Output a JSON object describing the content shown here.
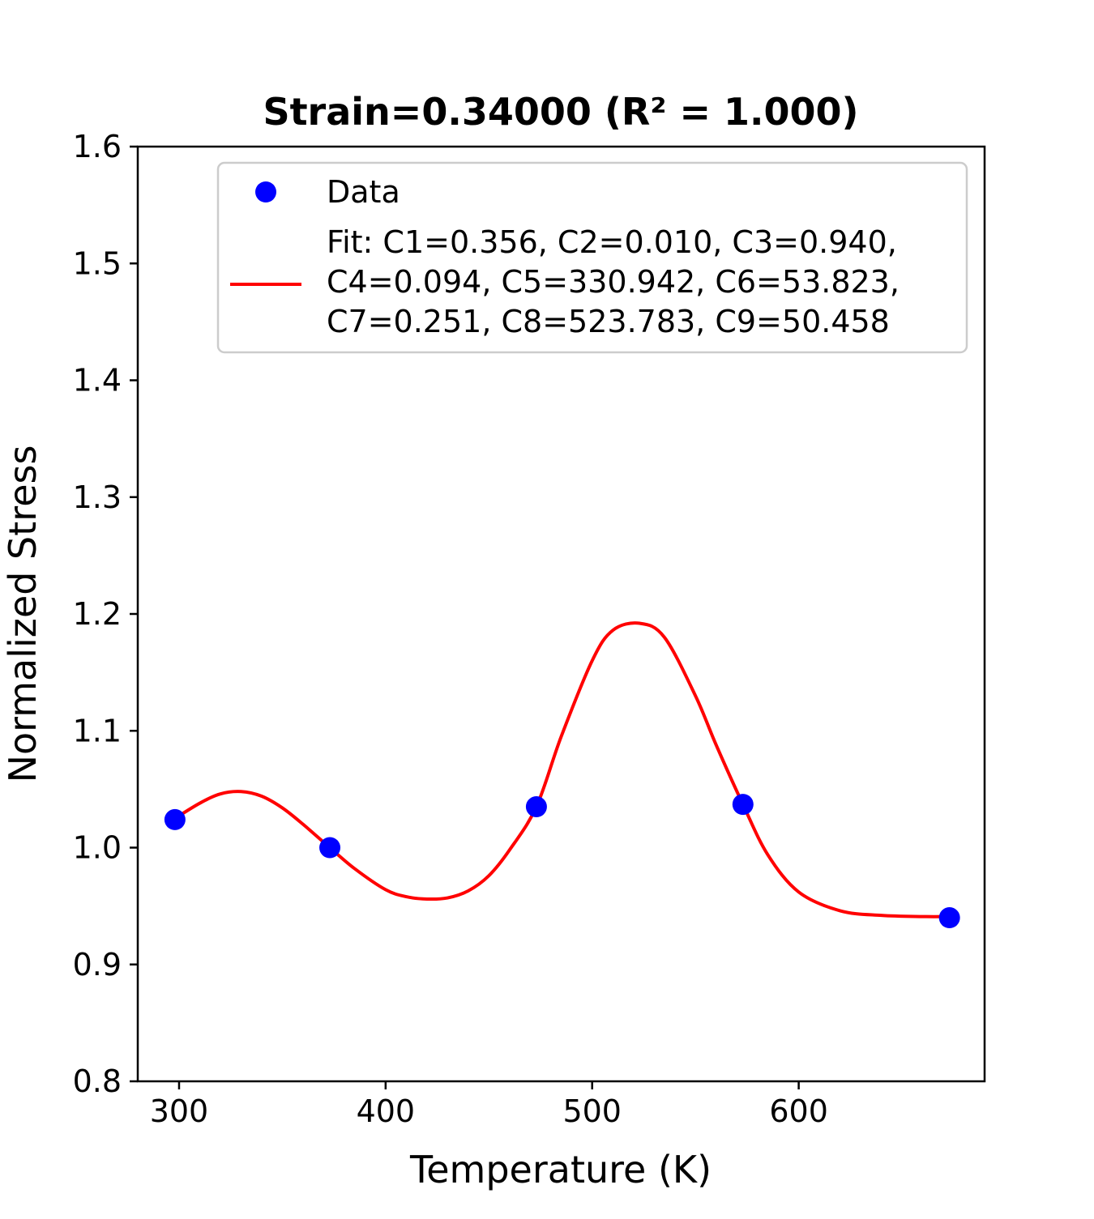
{
  "chart_data": {
    "type": "scatter",
    "title": "Strain=0.34000 (R² = 1.000)",
    "xlabel": "Temperature (K)",
    "ylabel": "Normalized Stress",
    "xlim": [
      280,
      690
    ],
    "ylim": [
      0.8,
      1.6
    ],
    "xticks": [
      300,
      400,
      500,
      600
    ],
    "xtick_labels": [
      "300",
      "400",
      "500",
      "600"
    ],
    "yticks": [
      0.8,
      0.9,
      1.0,
      1.1,
      1.2,
      1.3,
      1.4,
      1.5,
      1.6
    ],
    "ytick_labels": [
      "0.8",
      "0.9",
      "1.0",
      "1.1",
      "1.2",
      "1.3",
      "1.4",
      "1.5",
      "1.6"
    ],
    "grid": false,
    "legend_position": "top-right",
    "series": [
      {
        "name": "Data",
        "kind": "scatter",
        "color": "#0000ff",
        "x": [
          298,
          373,
          473,
          573,
          673
        ],
        "y": [
          1.024,
          1.0,
          1.035,
          1.037,
          0.94
        ]
      },
      {
        "name": "Fit",
        "kind": "line",
        "color": "#ff0000",
        "legend_label_lines": [
          "Fit: C1=0.356, C2=0.010, C3=0.940,",
          "C4=0.094, C5=330.942, C6=53.823,",
          "C7=0.251, C8=523.783, C9=50.458"
        ],
        "x": [
          298,
          310,
          320,
          330,
          340,
          350,
          360,
          373,
          385,
          400,
          410,
          420,
          430,
          440,
          450,
          460,
          473,
          485,
          500,
          510,
          523,
          535,
          550,
          560,
          573,
          585,
          600,
          620,
          640,
          660,
          673
        ],
        "y": [
          1.025,
          1.038,
          1.046,
          1.048,
          1.044,
          1.034,
          1.02,
          1.0,
          0.982,
          0.964,
          0.958,
          0.956,
          0.957,
          0.963,
          0.976,
          0.998,
          1.035,
          1.095,
          1.16,
          1.186,
          1.192,
          1.18,
          1.13,
          1.088,
          1.037,
          0.994,
          0.962,
          0.946,
          0.942,
          0.941,
          0.941
        ]
      }
    ]
  }
}
